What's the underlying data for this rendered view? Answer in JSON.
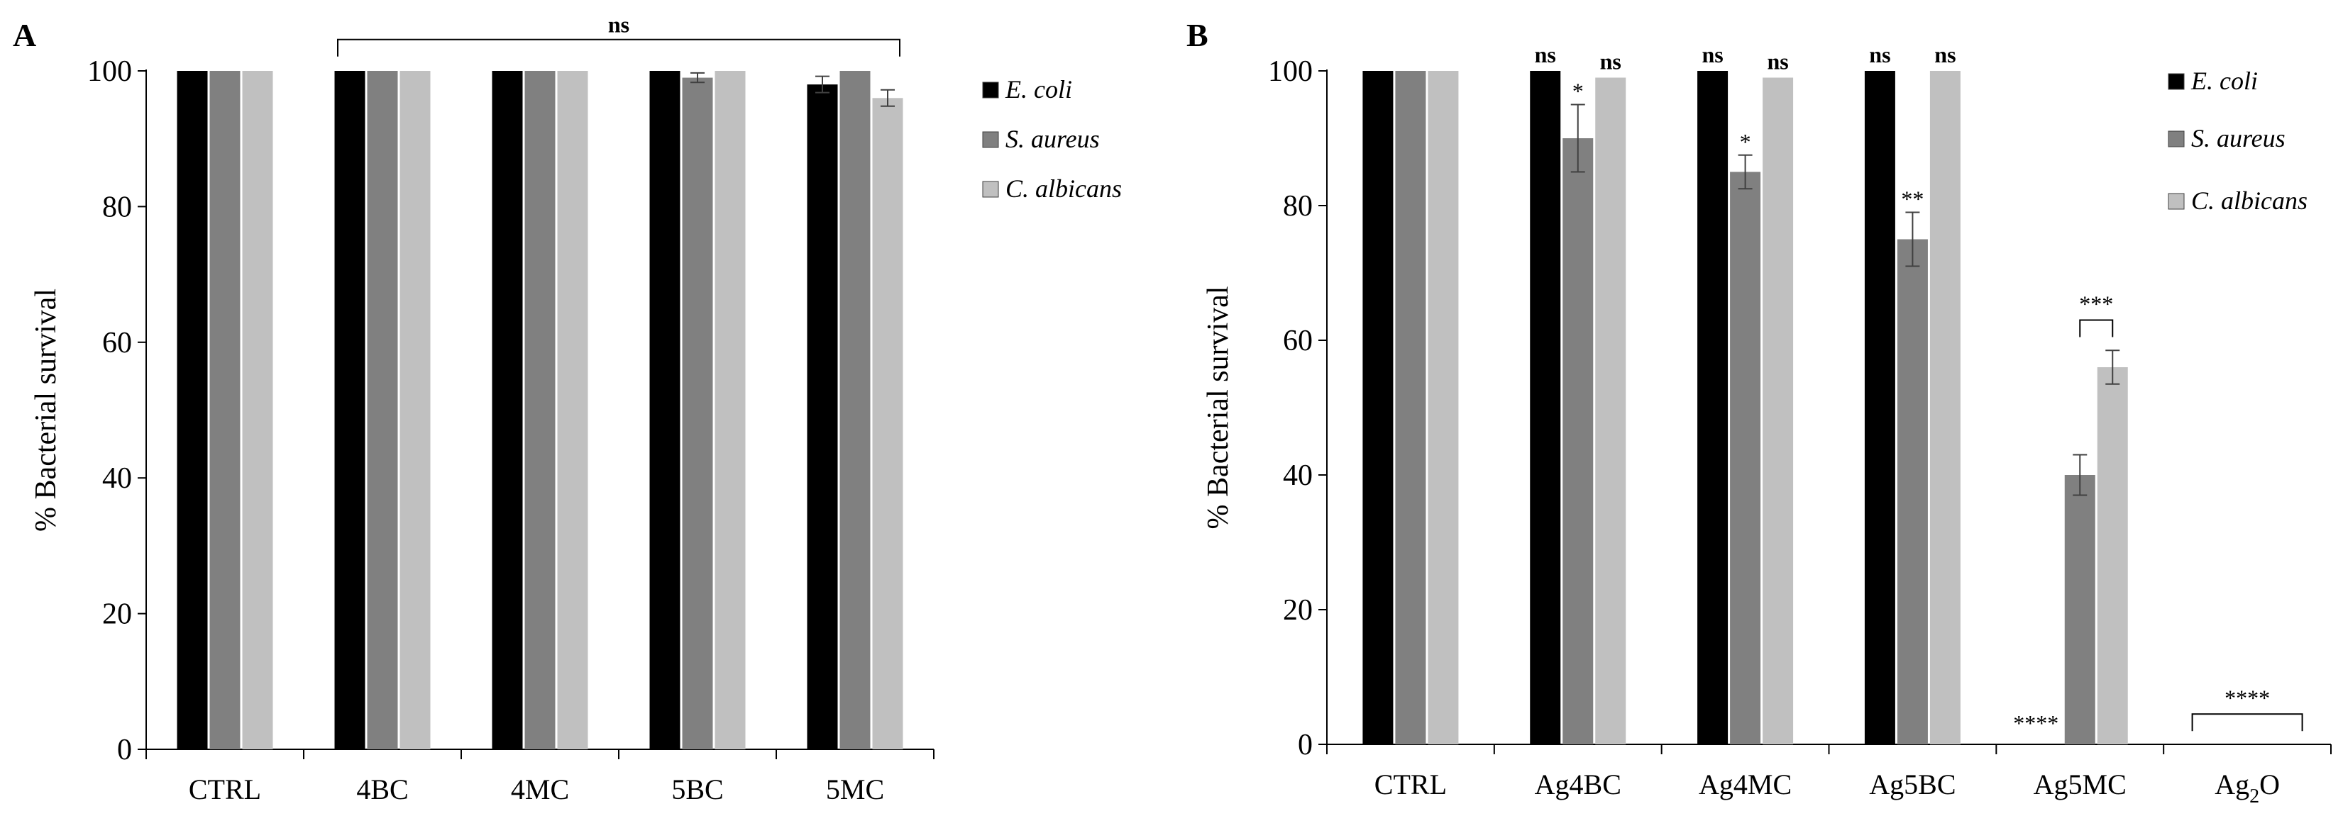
{
  "chart_data": [
    {
      "panel_label": "A",
      "type": "bar",
      "ylabel": "% Bacterial survival",
      "xlabel": "",
      "ylim": [
        0,
        100
      ],
      "yticks": [
        0,
        20,
        40,
        60,
        80,
        100
      ],
      "ytick_labels": [
        "0",
        "20",
        "40",
        "60",
        "80",
        "100"
      ],
      "grid": false,
      "legend_position": "right",
      "categories": [
        {
          "plain": "CTRL"
        },
        {
          "plain": "4BC"
        },
        {
          "plain": "4MC"
        },
        {
          "plain": "5BC"
        },
        {
          "plain": "5MC"
        }
      ],
      "series": [
        {
          "name": "E. coli",
          "color": "#000000",
          "values": [
            100,
            100,
            100,
            100,
            98
          ],
          "errors": [
            0,
            0,
            0,
            0,
            1.2
          ]
        },
        {
          "name": "S. aureus",
          "color": "#808080",
          "values": [
            100,
            100,
            100,
            99,
            100
          ],
          "errors": [
            0,
            0,
            0,
            0.7,
            0
          ]
        },
        {
          "name": "C. albicans",
          "color": "#c0c0c0",
          "values": [
            100,
            100,
            100,
            100,
            96
          ],
          "errors": [
            0,
            0,
            0,
            0,
            1.2
          ]
        }
      ],
      "annotations": [
        {
          "text": "ns",
          "kind": "bracket",
          "from": 1,
          "to": 4,
          "y": 104,
          "bold": true
        }
      ]
    },
    {
      "panel_label": "B",
      "type": "bar",
      "ylabel": "% Bacterial survival",
      "xlabel": "",
      "ylim": [
        0,
        100
      ],
      "yticks": [
        0,
        20,
        40,
        60,
        80,
        100
      ],
      "ytick_labels": [
        "0",
        "20",
        "40",
        "60",
        "80",
        "100"
      ],
      "grid": false,
      "legend_position": "right",
      "categories": [
        {
          "plain": "CTRL"
        },
        {
          "plain": "Ag4BC"
        },
        {
          "plain": "Ag4MC"
        },
        {
          "plain": "Ag5BC"
        },
        {
          "plain": "Ag5MC"
        },
        {
          "plain": "Ag2O",
          "base": "Ag",
          "sub": "2",
          "tail": "O"
        }
      ],
      "series": [
        {
          "name": "E. coli",
          "color": "#000000",
          "values": [
            100,
            100,
            100,
            100,
            0,
            0
          ],
          "errors": [
            0,
            0,
            0,
            0,
            0,
            0
          ]
        },
        {
          "name": "S. aureus",
          "color": "#808080",
          "values": [
            100,
            90,
            85,
            75,
            40,
            0
          ],
          "errors": [
            0,
            5,
            2.5,
            4,
            3,
            0
          ]
        },
        {
          "name": "C. albicans",
          "color": "#c0c0c0",
          "values": [
            100,
            99,
            99,
            100,
            56,
            0
          ],
          "errors": [
            0,
            0,
            0,
            0,
            2.5,
            0
          ]
        }
      ],
      "annotations": [
        {
          "text": "ns",
          "kind": "bar",
          "category": 1,
          "series": 0,
          "bold": true
        },
        {
          "text": "ns",
          "kind": "bar",
          "category": 1,
          "series": 2,
          "bold": true
        },
        {
          "text": "ns",
          "kind": "bar",
          "category": 2,
          "series": 0,
          "bold": true
        },
        {
          "text": "ns",
          "kind": "bar",
          "category": 2,
          "series": 2,
          "bold": true
        },
        {
          "text": "ns",
          "kind": "bar",
          "category": 3,
          "series": 0,
          "bold": true
        },
        {
          "text": "ns",
          "kind": "bar",
          "category": 3,
          "series": 2,
          "bold": true
        },
        {
          "text": "*",
          "kind": "bar",
          "category": 1,
          "series": 1,
          "bold": false
        },
        {
          "text": "*",
          "kind": "bar",
          "category": 2,
          "series": 1,
          "bold": false
        },
        {
          "text": "**",
          "kind": "bar",
          "category": 3,
          "series": 1,
          "bold": false
        },
        {
          "text": "***",
          "kind": "bracket",
          "category": 4,
          "series_from": 1,
          "series_to": 2,
          "y": 63,
          "bold": false
        },
        {
          "text": "****",
          "kind": "label",
          "category": 4,
          "series": 0,
          "y": 2,
          "bold": false
        },
        {
          "text": "****",
          "kind": "bracket",
          "category": 5,
          "series_from": 0,
          "series_to": 2,
          "y": 4.5,
          "bold": false
        }
      ]
    }
  ]
}
